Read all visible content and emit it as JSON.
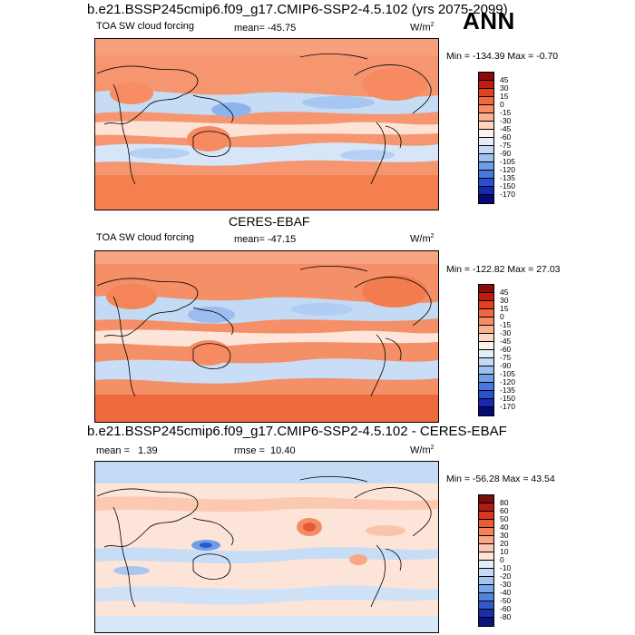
{
  "season": "ANN",
  "panels": [
    {
      "title": "b.e21.BSSP245cmip6.f09_g17.CMIP6-SSP2-4.5.102 (yrs 2075-2099)",
      "left_label": "TOA SW cloud forcing",
      "stat_label": "mean= -45.75",
      "units_base": "W/m",
      "units_exp": "2",
      "minmax": "Min = -134.39 Max =  -0.70",
      "colorbar": {
        "levels": [
          "45",
          "30",
          "15",
          "0",
          "-15",
          "-30",
          "-45",
          "-60",
          "-75",
          "-90",
          "-105",
          "-120",
          "-135",
          "-150",
          "-170"
        ],
        "colors": [
          "#8b0a0a",
          "#c01d12",
          "#e0421e",
          "#f2673d",
          "#f88b62",
          "#fbb190",
          "#fdd7c4",
          "#fdf1e8",
          "#e3eefa",
          "#c2daf6",
          "#9fc1f0",
          "#6f9ee6",
          "#4a78dc",
          "#2a50cf",
          "#1629b0",
          "#060a78"
        ]
      }
    },
    {
      "title": "CERES-EBAF",
      "left_label": "TOA SW cloud forcing",
      "stat_label": "mean= -47.15",
      "units_base": "W/m",
      "units_exp": "2",
      "minmax": "Min = -122.82 Max =  27.03",
      "colorbar": {
        "levels": [
          "45",
          "30",
          "15",
          "0",
          "-15",
          "-30",
          "-45",
          "-60",
          "-75",
          "-90",
          "-105",
          "-120",
          "-135",
          "-150",
          "-170"
        ],
        "colors": [
          "#8b0a0a",
          "#c01d12",
          "#e0421e",
          "#f2673d",
          "#f88b62",
          "#fbb190",
          "#fdd7c4",
          "#fdf1e8",
          "#e3eefa",
          "#c2daf6",
          "#9fc1f0",
          "#6f9ee6",
          "#4a78dc",
          "#2a50cf",
          "#1629b0",
          "#060a78"
        ]
      }
    },
    {
      "title": "b.e21.BSSP245cmip6.f09_g17.CMIP6-SSP2-4.5.102 - CERES-EBAF",
      "left_label": "mean =   1.39",
      "stat_label": "rmse =  10.40",
      "units_base": "W/m",
      "units_exp": "2",
      "minmax": "Min = -56.28 Max =  43.54",
      "colorbar": {
        "levels": [
          "80",
          "60",
          "50",
          "40",
          "30",
          "20",
          "10",
          "0",
          "-10",
          "-20",
          "-30",
          "-40",
          "-50",
          "-60",
          "-80"
        ],
        "colors": [
          "#7a0c0c",
          "#b11a14",
          "#d9361f",
          "#ee5a35",
          "#f6825b",
          "#f9a887",
          "#fcc8b2",
          "#fde4d8",
          "#e2edf9",
          "#c5dbf5",
          "#a3c4ef",
          "#7aa6e6",
          "#5282dc",
          "#3159cc",
          "#1830ad",
          "#08127a"
        ]
      }
    }
  ]
}
